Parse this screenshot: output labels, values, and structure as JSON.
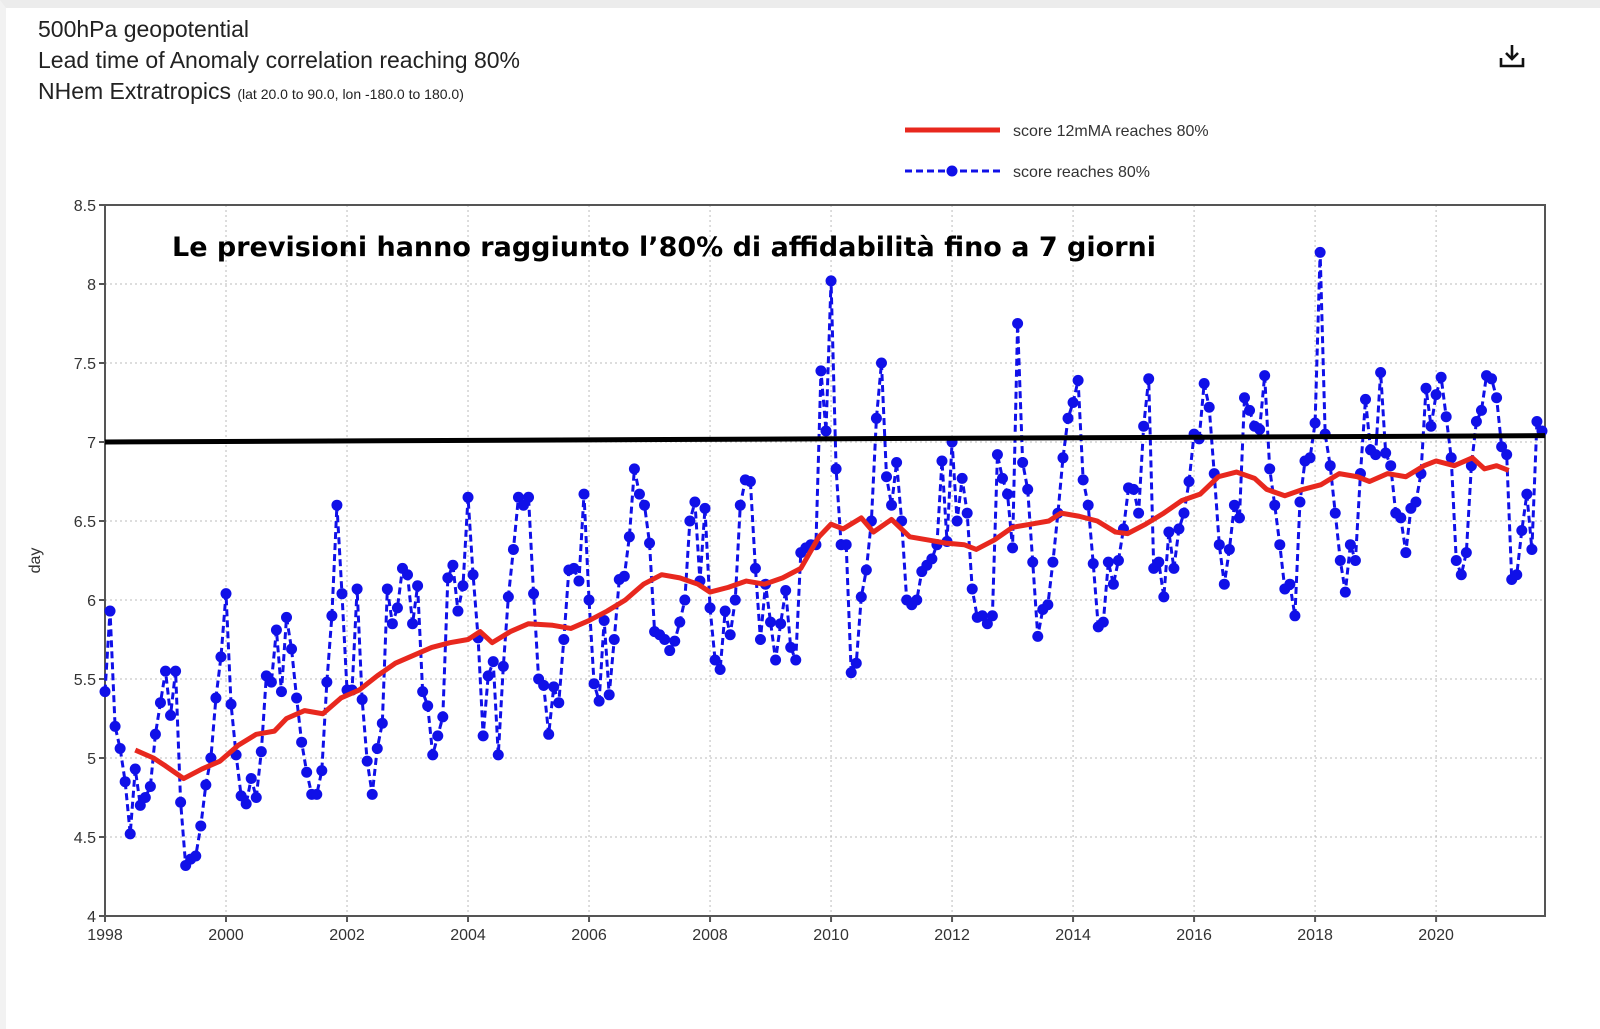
{
  "header": {
    "line1": "500hPa geopotential",
    "line2": "Lead time of Anomaly correlation reaching 80%",
    "line3": "NHem Extratropics",
    "line3_small": "(lat  20.0 to 90.0, lon  -180.0 to  180.0)",
    "download_icon": "download-icon"
  },
  "chart_data": {
    "type": "line",
    "ylabel": "day",
    "xlim": [
      1998,
      2021.8
    ],
    "ylim": [
      4,
      8.5
    ],
    "grid": true,
    "legend_placement": "top-right",
    "x_ticks": [
      "1998",
      "2000",
      "2002",
      "2004",
      "2006",
      "2008",
      "2010",
      "2012",
      "2014",
      "2016",
      "2018",
      "2020"
    ],
    "y_ticks": [
      "4",
      "4.5",
      "5",
      "5.5",
      "6",
      "6.5",
      "7",
      "7.5",
      "8",
      "8.5"
    ],
    "annotation": "Le previsioni hanno raggiunto l’80% di affidabilità fino a 7 giorni",
    "reference_line": {
      "color": "#000000",
      "y_start": 7.0,
      "y_end": 7.04
    },
    "series": [
      {
        "name": "score reaches 80%",
        "color": "#1010e8",
        "style": "dashed-markers",
        "start": 1998.0,
        "frequency": "monthly",
        "values": [
          5.42,
          5.93,
          5.2,
          5.06,
          4.85,
          4.52,
          4.93,
          4.7,
          4.75,
          4.82,
          5.15,
          5.35,
          5.55,
          5.27,
          5.55,
          4.72,
          4.32,
          4.36,
          4.38,
          4.57,
          4.83,
          5.0,
          5.38,
          5.64,
          6.04,
          5.34,
          5.02,
          4.76,
          4.71,
          4.87,
          4.75,
          5.04,
          5.52,
          5.48,
          5.81,
          5.42,
          5.89,
          5.69,
          5.38,
          5.1,
          4.91,
          4.77,
          4.77,
          4.92,
          5.48,
          5.9,
          6.6,
          6.04,
          5.43,
          5.43,
          6.07,
          5.37,
          4.98,
          4.77,
          5.06,
          5.22,
          6.07,
          5.85,
          5.95,
          6.2,
          6.16,
          5.85,
          6.09,
          5.42,
          5.33,
          5.02,
          5.14,
          5.26,
          6.14,
          6.22,
          5.93,
          6.09,
          6.65,
          6.16,
          5.76,
          5.14,
          5.52,
          5.61,
          5.02,
          5.58,
          6.02,
          6.32,
          6.65,
          6.6,
          6.65,
          6.04,
          5.5,
          5.46,
          5.15,
          5.45,
          5.35,
          5.75,
          6.19,
          6.2,
          6.12,
          6.67,
          6.0,
          5.47,
          5.36,
          5.87,
          5.4,
          5.75,
          6.13,
          6.15,
          6.4,
          6.83,
          6.67,
          6.6,
          6.36,
          5.8,
          5.78,
          5.75,
          5.68,
          5.74,
          5.86,
          6.0,
          6.5,
          6.62,
          6.12,
          6.58,
          5.95,
          5.62,
          5.56,
          5.93,
          5.78,
          6.0,
          6.6,
          6.76,
          6.75,
          6.2,
          5.75,
          6.1,
          5.86,
          5.62,
          5.85,
          6.06,
          5.7,
          5.62,
          6.3,
          6.33,
          6.35,
          6.35,
          7.45,
          7.07,
          8.02,
          6.83,
          6.35,
          6.35,
          5.54,
          5.6,
          6.02,
          6.19,
          6.5,
          7.15,
          7.5,
          6.78,
          6.6,
          6.87,
          6.5,
          6.0,
          5.97,
          6.0,
          6.18,
          6.22,
          6.26,
          6.35,
          6.88,
          6.37,
          7.0,
          6.5,
          6.77,
          6.55,
          6.07,
          5.89,
          5.9,
          5.85,
          5.9,
          6.92,
          6.77,
          6.67,
          6.33,
          7.75,
          6.87,
          6.7,
          6.24,
          5.77,
          5.94,
          5.97,
          6.24,
          6.55,
          6.9,
          7.15,
          7.25,
          7.39,
          6.76,
          6.6,
          6.23,
          5.83,
          5.86,
          6.24,
          6.1,
          6.25,
          6.45,
          6.71,
          6.7,
          6.55,
          7.1,
          7.4,
          6.2,
          6.24,
          6.02,
          6.43,
          6.2,
          6.45,
          6.55,
          6.75,
          7.05,
          7.02,
          7.37,
          7.22,
          6.8,
          6.35,
          6.1,
          6.32,
          6.6,
          6.52,
          7.28,
          7.2,
          7.1,
          7.08,
          7.42,
          6.83,
          6.6,
          6.35,
          6.07,
          6.1,
          5.9,
          6.62,
          6.88,
          6.9,
          7.12,
          8.2,
          7.05,
          6.85,
          6.55,
          6.25,
          6.05,
          6.35,
          6.25,
          6.8,
          7.27,
          6.95,
          6.92,
          7.44,
          6.93,
          6.85,
          6.55,
          6.52,
          6.3,
          6.58,
          6.62,
          6.8,
          7.34,
          7.1,
          7.3,
          7.41,
          7.16,
          6.9,
          6.25,
          6.16,
          6.3,
          6.85,
          7.13,
          7.2,
          7.42,
          7.4,
          7.28,
          6.97,
          6.92,
          6.13,
          6.16,
          6.44,
          6.67,
          6.32,
          7.13,
          7.07
        ]
      },
      {
        "name": "score 12mMA reaches 80%",
        "color": "#e8281e",
        "style": "solid",
        "points": [
          [
            1998.5,
            5.05
          ],
          [
            1998.8,
            5.0
          ],
          [
            1999.0,
            4.95
          ],
          [
            1999.3,
            4.87
          ],
          [
            1999.6,
            4.93
          ],
          [
            1999.9,
            4.98
          ],
          [
            2000.2,
            5.08
          ],
          [
            2000.5,
            5.15
          ],
          [
            2000.8,
            5.17
          ],
          [
            2001.0,
            5.25
          ],
          [
            2001.3,
            5.3
          ],
          [
            2001.6,
            5.28
          ],
          [
            2001.9,
            5.38
          ],
          [
            2002.2,
            5.43
          ],
          [
            2002.5,
            5.52
          ],
          [
            2002.8,
            5.6
          ],
          [
            2003.1,
            5.65
          ],
          [
            2003.4,
            5.7
          ],
          [
            2003.7,
            5.73
          ],
          [
            2004.0,
            5.75
          ],
          [
            2004.2,
            5.8
          ],
          [
            2004.4,
            5.73
          ],
          [
            2004.7,
            5.8
          ],
          [
            2005.0,
            5.85
          ],
          [
            2005.4,
            5.84
          ],
          [
            2005.7,
            5.82
          ],
          [
            2006.0,
            5.87
          ],
          [
            2006.3,
            5.93
          ],
          [
            2006.6,
            6.0
          ],
          [
            2006.9,
            6.1
          ],
          [
            2007.2,
            6.16
          ],
          [
            2007.5,
            6.14
          ],
          [
            2007.8,
            6.1
          ],
          [
            2008.0,
            6.05
          ],
          [
            2008.3,
            6.08
          ],
          [
            2008.6,
            6.12
          ],
          [
            2008.9,
            6.1
          ],
          [
            2009.2,
            6.14
          ],
          [
            2009.5,
            6.2
          ],
          [
            2009.8,
            6.4
          ],
          [
            2010.0,
            6.48
          ],
          [
            2010.2,
            6.45
          ],
          [
            2010.5,
            6.52
          ],
          [
            2010.7,
            6.43
          ],
          [
            2011.0,
            6.51
          ],
          [
            2011.3,
            6.4
          ],
          [
            2011.6,
            6.38
          ],
          [
            2011.9,
            6.36
          ],
          [
            2012.2,
            6.35
          ],
          [
            2012.4,
            6.32
          ],
          [
            2012.7,
            6.38
          ],
          [
            2013.0,
            6.46
          ],
          [
            2013.3,
            6.48
          ],
          [
            2013.6,
            6.5
          ],
          [
            2013.8,
            6.55
          ],
          [
            2014.1,
            6.53
          ],
          [
            2014.4,
            6.5
          ],
          [
            2014.7,
            6.43
          ],
          [
            2014.9,
            6.42
          ],
          [
            2015.2,
            6.48
          ],
          [
            2015.5,
            6.55
          ],
          [
            2015.8,
            6.63
          ],
          [
            2016.1,
            6.67
          ],
          [
            2016.4,
            6.78
          ],
          [
            2016.7,
            6.81
          ],
          [
            2017.0,
            6.77
          ],
          [
            2017.2,
            6.7
          ],
          [
            2017.5,
            6.66
          ],
          [
            2017.8,
            6.7
          ],
          [
            2018.1,
            6.73
          ],
          [
            2018.4,
            6.8
          ],
          [
            2018.7,
            6.78
          ],
          [
            2018.9,
            6.75
          ],
          [
            2019.2,
            6.8
          ],
          [
            2019.5,
            6.78
          ],
          [
            2019.8,
            6.85
          ],
          [
            2020.0,
            6.88
          ],
          [
            2020.3,
            6.85
          ],
          [
            2020.6,
            6.9
          ],
          [
            2020.8,
            6.83
          ],
          [
            2021.0,
            6.85
          ],
          [
            2021.2,
            6.82
          ]
        ]
      }
    ]
  }
}
